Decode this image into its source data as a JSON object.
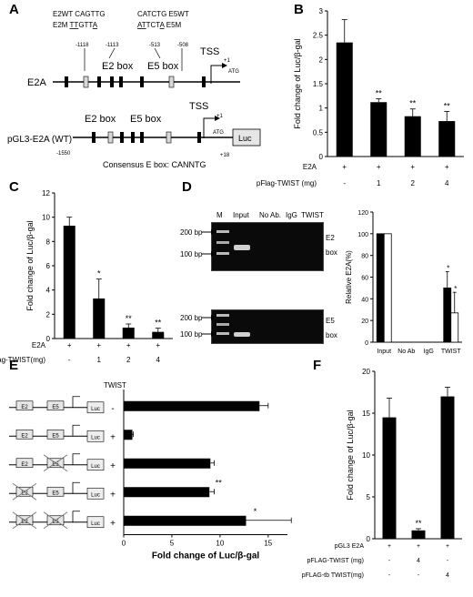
{
  "panels": {
    "A": {
      "letter": "A",
      "seq_e2wt": "E2WT CAGTTG",
      "seq_e2m_prefix": "E2M",
      "seq_e2m_u1": "TT",
      "seq_e2m_mid": "GTT",
      "seq_e2m_u2": "A",
      "seq_e5wt": "CATCTG E5WT",
      "seq_e5m_u1": "AT",
      "seq_e5m_mid": "TCT",
      "seq_e5m_u2": "A",
      "seq_e5m_suffix": "E5M",
      "pos_1118": "-1118",
      "pos_1113": "-1113",
      "pos_513": "-513",
      "pos_508": "-508",
      "e2box": "E2 box",
      "e5box": "E5 box",
      "tss": "TSS",
      "plus1": "+1",
      "atg": "ATG",
      "gene_label": "E2A",
      "construct_label": "pGL3-E2A (WT)",
      "e2box_2": "E2 box",
      "e5box_2": "E5 box",
      "tss_2": "TSS",
      "plus1_2": "+1",
      "atg_2": "ATG",
      "luc": "Luc",
      "pos_1550": "-1550",
      "pos_18": "+18",
      "consensus": "Consensus E box: CANNTG"
    },
    "B": {
      "letter": "B"
    },
    "C": {
      "letter": "C"
    },
    "D": {
      "letter": "D",
      "lane_m": "M",
      "lane_input": "Input",
      "lane_noab": "No Ab.",
      "lane_igg": "IgG",
      "lane_twist": "TWIST",
      "bp200_top": "200 bp",
      "bp100_top": "100 bp",
      "bp200_bot": "200 bp",
      "bp100_bot": "100 bp",
      "e2": "E2",
      "box_e2": "box",
      "e5": "E5",
      "box_e5": "box"
    },
    "E": {
      "letter": "E",
      "twist_header": "TWIST",
      "e2": "E2",
      "e5": "E5",
      "luc": "Luc"
    },
    "F": {
      "letter": "F"
    }
  },
  "chart_data": [
    {
      "id": "B",
      "type": "bar",
      "ylabel": "Fold change of Luc/β-gal",
      "ylim": [
        0,
        3
      ],
      "yticks": [
        "0",
        "0.5",
        "1",
        "1.5",
        "2",
        "2.5",
        "3"
      ],
      "values": [
        2.35,
        1.12,
        0.83,
        0.73
      ],
      "errors": [
        0.47,
        0.07,
        0.15,
        0.2
      ],
      "significance": [
        "",
        "**",
        "**",
        "**"
      ],
      "rows": [
        {
          "label": "E2A",
          "values": [
            "+",
            "+",
            "+",
            "+"
          ]
        },
        {
          "label": "pFlag-TWIST (mg)",
          "values": [
            "-",
            "1",
            "2",
            "4"
          ]
        }
      ]
    },
    {
      "id": "C",
      "type": "bar",
      "ylabel": "Fold change of Luc/β-gal",
      "ylim": [
        0,
        12
      ],
      "yticks": [
        "0",
        "2",
        "4",
        "6",
        "8",
        "10",
        "12"
      ],
      "values": [
        9.3,
        3.3,
        0.9,
        0.55
      ],
      "errors": [
        0.7,
        1.6,
        0.3,
        0.3
      ],
      "significance": [
        "",
        "*",
        "**",
        "**"
      ],
      "rows": [
        {
          "label": "E2A",
          "values": [
            "+",
            "+",
            "+",
            "+"
          ]
        },
        {
          "label": "pFlag-TWIST(mg)",
          "values": [
            "-",
            "1",
            "2",
            "4"
          ]
        }
      ]
    },
    {
      "id": "D",
      "type": "bar",
      "ylabel": "Relative E2A(%)",
      "ylim": [
        0,
        120
      ],
      "yticks": [
        "0",
        "20",
        "40",
        "60",
        "80",
        "100",
        "120"
      ],
      "categories": [
        "Input",
        "No Ab",
        "IgG",
        "TWIST"
      ],
      "series": [
        {
          "color": "#000000",
          "values": [
            100,
            0,
            0,
            50
          ],
          "errors": [
            0,
            0,
            0,
            15
          ],
          "significance": [
            "",
            "",
            "",
            "*"
          ]
        },
        {
          "color": "#ffffff",
          "values": [
            100,
            0,
            0,
            27
          ],
          "errors": [
            0,
            0,
            0,
            19
          ],
          "significance": [
            "",
            "",
            "",
            "*"
          ]
        }
      ]
    },
    {
      "id": "E",
      "type": "bar",
      "orientation": "horizontal",
      "xlabel": "Fold change of Luc/β-gal",
      "xlim": [
        0,
        17
      ],
      "xticks": [
        "0",
        "5",
        "10",
        "15"
      ],
      "twist": [
        "-",
        "+",
        "+",
        "+",
        "+"
      ],
      "values": [
        14.1,
        0.9,
        9.0,
        8.9,
        12.7
      ],
      "errors": [
        0.9,
        0.1,
        0.4,
        0.5,
        4.7
      ],
      "significance": [
        "",
        "",
        "",
        "**",
        "*"
      ]
    },
    {
      "id": "F",
      "type": "bar",
      "ylabel": "Fold change of Luc/β-gal",
      "ylim": [
        0,
        20
      ],
      "yticks": [
        "0",
        "5",
        "10",
        "15",
        "20"
      ],
      "values": [
        14.5,
        1.0,
        17.0
      ],
      "errors": [
        2.3,
        0.2,
        1.1
      ],
      "significance": [
        "",
        "**",
        ""
      ],
      "rows": [
        {
          "label": "pGL3 E2A",
          "values": [
            "+",
            "+",
            "+"
          ]
        },
        {
          "label": "pFLAG-TWIST (mg)",
          "values": [
            "-",
            "4",
            "-"
          ]
        },
        {
          "label": "pFLAG-tb TWIST(mg)",
          "values": [
            "-",
            "-",
            "4"
          ]
        }
      ]
    }
  ]
}
